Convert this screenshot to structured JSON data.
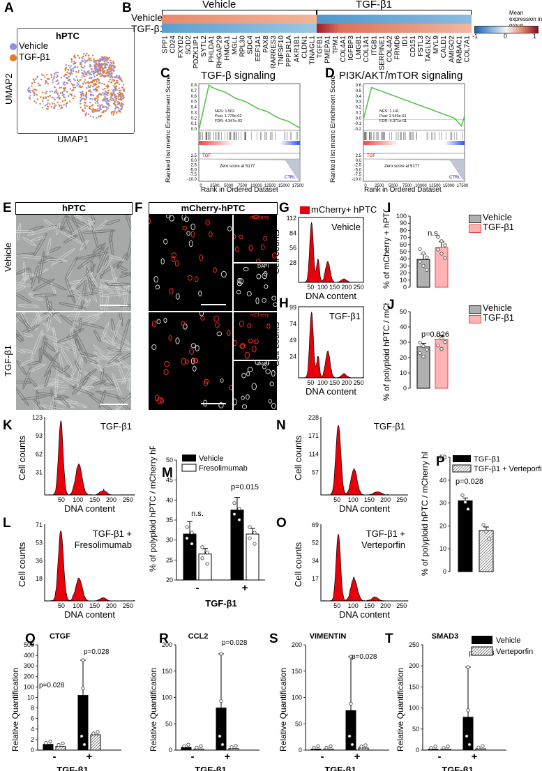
{
  "panels": {
    "A": {
      "label": "A",
      "title": "hPTC",
      "xlabel": "UMAP1",
      "ylabel": "UMAP2",
      "legend": [
        {
          "name": "Vehicle",
          "color": "#8f8fe8"
        },
        {
          "name": "TGF-β1",
          "color": "#e67a20"
        }
      ]
    },
    "B": {
      "label": "B",
      "groups": [
        "Vehicle",
        "TGF-β1"
      ],
      "rows": [
        "Vehicle",
        "TGF-β1"
      ],
      "genes_left": [
        "SPP1",
        "CD24",
        "FXYD2",
        "SOD2",
        "PDZK1IP1",
        "SYTL2",
        "PHLDA1",
        "RHGAP29",
        "HMGA1",
        "MGLL",
        "RPL30",
        "SDC4",
        "EEF1A1",
        "PAX8",
        "RARRES3",
        "TNFSF10",
        "PPP1R1A",
        "AKR1B1",
        "CLDN1",
        "TINAGL1"
      ],
      "genes_right": [
        "TGFB1",
        "PMEPA1",
        "TPM1",
        "COL4A1",
        "IGFBP3",
        "LMGB1",
        "COL1A1",
        "ITGB1",
        "SERPINE1",
        "COL4A2",
        "FRMD6",
        "ID1",
        "CD151",
        "FSTL3",
        "TAGLN2",
        "MYL9",
        "CALD1",
        "AMIGO2",
        "RABAC1",
        "COL7A1"
      ],
      "colorbar_title": "Mean expression in group",
      "colorbar_ticks": [
        "-1",
        "0",
        "1"
      ]
    },
    "C": {
      "label": "C",
      "title": "TGF-β signaling",
      "ylabel": "Ranked list metric Enrichment Score",
      "xlabel": "Rank in Ordered Dataset",
      "stats": [
        "NES: 1.502",
        "Pval: 1.775e-02",
        "FDR: 4.347e-02"
      ],
      "left_tag": "TGF",
      "right_tag": "CTRL",
      "zero_text": "Zero score at 5177",
      "yticks_top": [
        "0.8",
        "0.7",
        "0.6",
        "0.5",
        "0.4",
        "0.3",
        "0.2",
        "0.1",
        "0.0"
      ],
      "yticks_bottom": [
        "2.5",
        "0.0",
        "-2.5",
        "-5.0",
        "-7.5",
        "-10.0"
      ],
      "xticks": [
        "0",
        "2500",
        "5000",
        "7500",
        "10000",
        "12500",
        "15000",
        "17500"
      ]
    },
    "D": {
      "label": "D",
      "title": "PI3K/AKT/mTOR signaling",
      "ylabel": "Ranked list metric Enrichment Score",
      "xlabel": "Rank in Ordered Dataset",
      "stats": [
        "NES: 1.141",
        "Pval: 2.549e-01",
        "FDR: 4.371e-01"
      ],
      "left_tag": "TGF",
      "right_tag": "CTRL",
      "zero_text": "Zero score at 5177",
      "yticks_top": [
        "0.6",
        "0.5",
        "0.4",
        "0.3",
        "0.2",
        "0.1",
        "0.0",
        "-0.1",
        "-0.2"
      ],
      "yticks_bottom": [
        "2.5",
        "0.0",
        "-2.5",
        "-5.0",
        "-7.5",
        "-10.0"
      ],
      "xticks": [
        "0",
        "2500",
        "5000",
        "7500",
        "10000",
        "12500",
        "15000",
        "17500"
      ]
    },
    "E": {
      "label": "E",
      "header": "hPTC",
      "rows": [
        "Vehicle",
        "TGF-β1"
      ]
    },
    "F": {
      "label": "F",
      "header": "mCherry-hPTC",
      "channel_top": "mCherry",
      "channel_bottom": "DAPI"
    },
    "G": {
      "label": "G",
      "legend": "mCherry+ hPTC",
      "condition": "Vehicle",
      "ylabel": "Cell counts",
      "xlabel": "DNA content",
      "yticks": [
        "112",
        "84",
        "56",
        "28"
      ],
      "xticks": [
        "50",
        "100",
        "150",
        "200",
        "250"
      ]
    },
    "H": {
      "label": "H",
      "condition": "TGF-β1",
      "ylabel": "Cell counts",
      "xlabel": "DNA content",
      "yticks": [
        "99",
        "74",
        "49",
        "24"
      ],
      "xticks": [
        "50",
        "100",
        "150",
        "200",
        "250"
      ]
    },
    "I": {
      "label": "I",
      "ylabel": "% of mCherry + hPTC",
      "annotation": "n.s.",
      "yticks": [
        "100",
        "90",
        "80",
        "70",
        "60",
        "50",
        "40",
        "30",
        "20",
        "10",
        "0"
      ]
    },
    "J": {
      "label": "J",
      "ylabel": "% of polyploid hPTC / mCherry hPTC",
      "annotation": "p=0.026",
      "yticks": [
        "50",
        "40",
        "30",
        "20",
        "10",
        "0"
      ]
    },
    "IJ_legend": [
      {
        "name": "Vehicle",
        "color": "#b0b0b0"
      },
      {
        "name": "TGF-β1",
        "color": "#ffb3b3"
      }
    ],
    "K": {
      "label": "K",
      "condition": "TGF-β1",
      "ylabel": "Cell counts",
      "xlabel": "DNA content",
      "yticks": [
        "123",
        "93",
        "62",
        "31"
      ],
      "xticks": [
        "50",
        "100",
        "150",
        "200",
        "250"
      ]
    },
    "L": {
      "label": "L",
      "condition_line1": "TGF-β1 +",
      "condition_line2": "Fresolimumab",
      "ylabel": "Cell counts",
      "xlabel": "DNA content",
      "yticks": [
        "71",
        "53",
        "36",
        "18"
      ],
      "xticks": [
        "50",
        "100",
        "150",
        "200",
        "250"
      ]
    },
    "M": {
      "label": "M",
      "ylabel": "% of polyploid hPTC / mCherry hPTC",
      "legend": [
        "Vehicle",
        "Fresolimumab"
      ],
      "ann_left": "n.s.",
      "ann_right": "p=0.015",
      "yticks": [
        "50",
        "45",
        "40",
        "35",
        "30",
        "25",
        "20"
      ],
      "xcats": [
        "-",
        "+"
      ],
      "xlabel": "TGF-β1"
    },
    "N": {
      "label": "N",
      "condition": "TGF-β1",
      "ylabel": "Cell counts",
      "xlabel": "DNA content",
      "yticks": [
        "228",
        "171",
        "114",
        "57"
      ],
      "xticks": [
        "50",
        "100",
        "150",
        "200",
        "250"
      ]
    },
    "O": {
      "label": "O",
      "condition_line1": "TGF-β1 +",
      "condition_line2": "Verteporfin",
      "ylabel": "Cell counts",
      "xlabel": "DNA content",
      "yticks": [
        "69",
        "52",
        "34",
        "17"
      ],
      "xticks": [
        "50",
        "100",
        "150",
        "200",
        "250"
      ]
    },
    "P": {
      "label": "P",
      "ylabel": "% of polyploid hPTC / mCherry hPTC",
      "legend": [
        "TGF-β1",
        "TGF-β1 + Verteporfin"
      ],
      "annotation": "p=0.028",
      "yticks": [
        "50",
        "40",
        "30",
        "20",
        "10",
        "0"
      ]
    },
    "Q": {
      "label": "Q",
      "gene": "CTGF",
      "ann1": "p=0.028",
      "ann2": "p=0.028",
      "ylabel": "Relative Quantification",
      "yticks": [
        "500",
        "400",
        "300",
        "200",
        "100",
        "10",
        "8",
        "6",
        "4",
        "2",
        "0"
      ],
      "xcats": [
        "-",
        "+"
      ],
      "xlabel": "TGF-β1"
    },
    "R": {
      "label": "R",
      "gene": "CCL2",
      "ann": "p=0.028",
      "ylabel": "Relative Quantification",
      "yticks": [
        "200",
        "150",
        "100",
        "50",
        "0"
      ],
      "xcats": [
        "-",
        "+"
      ],
      "xlabel": "TGF-β1"
    },
    "S": {
      "label": "S",
      "gene": "VIMENTIN",
      "ann": "p=0.028",
      "ylabel": "Relative Quantification",
      "yticks": [
        "200",
        "150",
        "100",
        "50",
        "0"
      ],
      "xcats": [
        "-",
        "+"
      ],
      "xlabel": "TGF-β1"
    },
    "T": {
      "label": "T",
      "gene": "SMAD3",
      "ann": "p=0.028",
      "ylabel": "Relative Quantification",
      "yticks": [
        "250",
        "200",
        "150",
        "100",
        "50",
        "0"
      ],
      "xcats": [
        "-",
        "+"
      ],
      "xlabel": "TGF-β1"
    },
    "QT_legend": [
      "Vehicle",
      "Verteporfin"
    ]
  },
  "colors": {
    "red": "#e8000b",
    "gsea_green": "#57c24b",
    "veh_bar": "#b0b0b0",
    "tgf_bar": "#ffb3b3",
    "black": "#000000"
  },
  "chart_data": [
    {
      "panel": "I",
      "type": "bar",
      "categories": [
        "Vehicle",
        "TGF-β1"
      ],
      "values": [
        39,
        56
      ],
      "ylim": [
        0,
        100
      ]
    },
    {
      "panel": "J",
      "type": "bar",
      "categories": [
        "Vehicle",
        "TGF-β1"
      ],
      "values": [
        27,
        32
      ],
      "ylim": [
        0,
        50
      ]
    },
    {
      "panel": "M",
      "type": "bar",
      "categories": [
        "-",
        "+"
      ],
      "series": [
        {
          "name": "Vehicle",
          "values": [
            31.5,
            37.5
          ]
        },
        {
          "name": "Fresolimumab",
          "values": [
            26.5,
            31.5
          ]
        }
      ],
      "ylim": [
        20,
        50
      ]
    },
    {
      "panel": "P",
      "type": "bar",
      "categories": [
        "TGF-β1",
        "TGF-β1 + Verteporfin"
      ],
      "values": [
        31,
        18
      ],
      "ylim": [
        0,
        50
      ]
    },
    {
      "panel": "Q",
      "type": "bar",
      "categories": [
        "-",
        "+"
      ],
      "series": [
        {
          "name": "Vehicle",
          "values": [
            1.5,
            180
          ]
        },
        {
          "name": "Verteporfin",
          "values": [
            1,
            4
          ]
        }
      ]
    },
    {
      "panel": "R",
      "type": "bar",
      "categories": [
        "-",
        "+"
      ],
      "series": [
        {
          "name": "Vehicle",
          "values": [
            5,
            80
          ]
        },
        {
          "name": "Verteporfin",
          "values": [
            2,
            3
          ]
        }
      ],
      "ylim": [
        0,
        200
      ]
    },
    {
      "panel": "S",
      "type": "bar",
      "categories": [
        "-",
        "+"
      ],
      "series": [
        {
          "name": "Vehicle",
          "values": [
            2,
            75
          ]
        },
        {
          "name": "Verteporfin",
          "values": [
            2,
            4
          ]
        }
      ],
      "ylim": [
        0,
        200
      ]
    },
    {
      "panel": "T",
      "type": "bar",
      "categories": [
        "-",
        "+"
      ],
      "series": [
        {
          "name": "Vehicle",
          "values": [
            2,
            78
          ]
        },
        {
          "name": "Verteporfin",
          "values": [
            2,
            3
          ]
        }
      ],
      "ylim": [
        0,
        250
      ]
    }
  ]
}
